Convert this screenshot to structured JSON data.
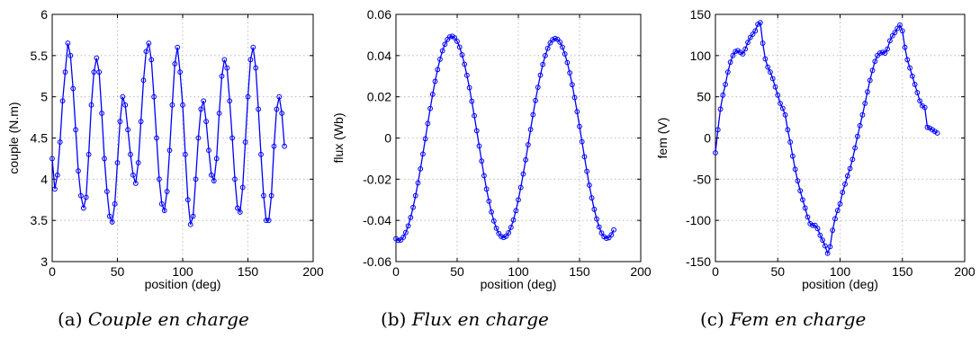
{
  "chart_data": [
    {
      "type": "line",
      "xlabel": "position (deg)",
      "ylabel": "couple (N.m)",
      "caption": {
        "tag": "(a)",
        "text": "Couple en charge"
      },
      "xlim": [
        0,
        200
      ],
      "ylim": [
        3,
        6
      ],
      "xticks": [
        0,
        50,
        100,
        150,
        200
      ],
      "yticks": [
        3,
        3.5,
        4,
        4.5,
        5,
        5.5,
        6
      ],
      "xtick_labels": [
        "0",
        "50",
        "100",
        "150",
        "200"
      ],
      "ytick_labels": [
        "3",
        "3.5",
        "4",
        "4.5",
        "5",
        "5.5",
        "6"
      ],
      "grid": true,
      "marker": "circle",
      "color": "#0000ff",
      "series": [
        {
          "x": [
            0,
            2,
            4,
            6,
            8,
            10,
            12,
            14,
            16,
            18,
            20,
            22,
            24,
            26,
            28,
            30,
            32,
            34,
            36,
            38,
            40,
            42,
            44,
            46,
            48,
            50,
            52,
            54,
            56,
            58,
            60,
            62,
            64,
            66,
            68,
            70,
            72,
            74,
            76,
            78,
            80,
            82,
            84,
            86,
            88,
            90,
            92,
            94,
            96,
            98,
            100,
            102,
            104,
            106,
            108,
            110,
            112,
            114,
            116,
            118,
            120,
            122,
            124,
            126,
            128,
            130,
            132,
            134,
            136,
            138,
            140,
            142,
            144,
            146,
            148,
            150,
            152,
            154,
            156,
            158,
            160,
            162,
            164,
            166,
            168,
            170,
            172,
            174,
            176,
            178
          ],
          "y": [
            4.25,
            3.88,
            4.05,
            4.45,
            4.95,
            5.3,
            5.65,
            5.5,
            5.1,
            4.6,
            4.1,
            3.8,
            3.65,
            3.78,
            4.3,
            4.9,
            5.3,
            5.47,
            5.3,
            4.8,
            4.25,
            3.85,
            3.55,
            3.48,
            3.7,
            4.2,
            4.7,
            5.0,
            4.9,
            4.6,
            4.3,
            4.05,
            3.95,
            4.2,
            4.7,
            5.2,
            5.55,
            5.65,
            5.45,
            5.0,
            4.5,
            4.0,
            3.7,
            3.62,
            3.85,
            4.35,
            4.9,
            5.4,
            5.6,
            5.3,
            4.9,
            4.3,
            3.75,
            3.45,
            3.55,
            4.0,
            4.5,
            4.85,
            4.95,
            4.7,
            4.35,
            4.05,
            3.98,
            4.25,
            4.8,
            5.25,
            5.45,
            5.35,
            4.95,
            4.5,
            4.0,
            3.65,
            3.6,
            3.9,
            4.45,
            5.0,
            5.45,
            5.6,
            5.35,
            4.85,
            4.3,
            3.8,
            3.5,
            3.5,
            3.8,
            4.4,
            4.85,
            5.0,
            4.8,
            4.4
          ]
        }
      ]
    },
    {
      "type": "line",
      "xlabel": "position (deg)",
      "ylabel": "flux (Wb)",
      "caption": {
        "tag": "(b)",
        "text": "Flux en charge"
      },
      "xlim": [
        0,
        200
      ],
      "ylim": [
        -0.06,
        0.06
      ],
      "xticks": [
        0,
        50,
        100,
        150,
        200
      ],
      "yticks": [
        -0.06,
        -0.04,
        -0.02,
        0,
        0.02,
        0.04,
        0.06
      ],
      "xtick_labels": [
        "0",
        "50",
        "100",
        "150",
        "200"
      ],
      "ytick_labels": [
        "-0.06",
        "-0.04",
        "-0.02",
        "0",
        "0.02",
        "0.04",
        "0.06"
      ],
      "grid": true,
      "marker": "circle",
      "color": "#0000ff",
      "series": [
        {
          "x": [
            0,
            2,
            4,
            6,
            8,
            10,
            12,
            14,
            16,
            18,
            20,
            22,
            24,
            26,
            28,
            30,
            32,
            34,
            36,
            38,
            40,
            42,
            44,
            46,
            48,
            50,
            52,
            54,
            56,
            58,
            60,
            62,
            64,
            66,
            68,
            70,
            72,
            74,
            76,
            78,
            80,
            82,
            84,
            86,
            88,
            90,
            92,
            94,
            96,
            98,
            100,
            102,
            104,
            106,
            108,
            110,
            112,
            114,
            116,
            118,
            120,
            122,
            124,
            126,
            128,
            130,
            132,
            134,
            136,
            138,
            140,
            142,
            144,
            146,
            148,
            150,
            152,
            154,
            156,
            158,
            160,
            162,
            164,
            166,
            168,
            170,
            172,
            174,
            176,
            178
          ],
          "y": [
            -0.0489,
            -0.0497,
            -0.0495,
            -0.0482,
            -0.0459,
            -0.0427,
            -0.0386,
            -0.0337,
            -0.028,
            -0.0218,
            -0.015,
            -0.0078,
            -0.0004,
            0.007,
            0.0143,
            0.0212,
            0.0275,
            0.0332,
            0.0382,
            0.0423,
            0.0455,
            0.0478,
            0.0491,
            0.0494,
            0.0486,
            0.0469,
            0.0441,
            0.0404,
            0.0358,
            0.0304,
            0.0244,
            0.0178,
            0.0108,
            0.0035,
            -0.0039,
            -0.0112,
            -0.0183,
            -0.0248,
            -0.0307,
            -0.0359,
            -0.0403,
            -0.0438,
            -0.0463,
            -0.0478,
            -0.0483,
            -0.0477,
            -0.046,
            -0.0434,
            -0.0398,
            -0.0353,
            -0.03,
            -0.024,
            -0.0175,
            -0.0106,
            -0.0033,
            0.0041,
            0.0113,
            0.0182,
            0.0246,
            0.0305,
            0.0357,
            0.04,
            0.0435,
            0.0461,
            0.0477,
            0.0483,
            0.0479,
            0.0465,
            0.0441,
            0.0408,
            0.0366,
            0.0316,
            0.0259,
            0.0196,
            0.0128,
            0.0056,
            -0.0018,
            -0.0091,
            -0.0162,
            -0.0229,
            -0.0291,
            -0.0346,
            -0.0393,
            -0.0432,
            -0.0461,
            -0.0479,
            -0.0487,
            -0.0484,
            -0.047,
            -0.0446
          ]
        }
      ]
    },
    {
      "type": "line",
      "xlabel": "position (deg)",
      "ylabel": "fem (V)",
      "caption": {
        "tag": "(c)",
        "text": "Fem en charge"
      },
      "xlim": [
        0,
        200
      ],
      "ylim": [
        -150,
        150
      ],
      "xticks": [
        0,
        50,
        100,
        150,
        200
      ],
      "yticks": [
        -150,
        -100,
        -50,
        0,
        50,
        100,
        150
      ],
      "xtick_labels": [
        "0",
        "50",
        "100",
        "150",
        "200"
      ],
      "ytick_labels": [
        "-150",
        "-100",
        "-50",
        "0",
        "50",
        "100",
        "150"
      ],
      "grid": true,
      "marker": "circle",
      "color": "#0000ff",
      "series": [
        {
          "x": [
            0,
            2,
            4,
            6,
            8,
            10,
            12,
            14,
            16,
            18,
            20,
            22,
            24,
            26,
            28,
            30,
            32,
            34,
            36,
            38,
            40,
            42,
            44,
            46,
            48,
            50,
            52,
            54,
            56,
            58,
            60,
            62,
            64,
            66,
            68,
            70,
            72,
            74,
            76,
            78,
            80,
            82,
            84,
            86,
            88,
            90,
            92,
            94,
            96,
            98,
            100,
            102,
            104,
            106,
            108,
            110,
            112,
            114,
            116,
            118,
            120,
            122,
            124,
            126,
            128,
            130,
            132,
            134,
            136,
            138,
            140,
            142,
            144,
            146,
            148,
            150,
            152,
            154,
            156,
            158,
            160,
            162,
            164,
            166,
            168,
            170,
            172,
            174,
            176,
            178
          ],
          "y": [
            -18,
            10,
            35,
            52,
            65,
            80,
            92,
            100,
            105,
            106,
            104,
            102,
            108,
            116,
            122,
            126,
            130,
            138,
            140,
            115,
            96,
            86,
            80,
            72,
            62,
            52,
            42,
            36,
            28,
            10,
            -5,
            -22,
            -38,
            -52,
            -64,
            -75,
            -85,
            -96,
            -104,
            -106,
            -106,
            -110,
            -118,
            -124,
            -131,
            -140,
            -132,
            -112,
            -98,
            -88,
            -80,
            -66,
            -56,
            -46,
            -37,
            -26,
            -12,
            2,
            15,
            28,
            42,
            56,
            70,
            82,
            93,
            100,
            103,
            104,
            103,
            108,
            118,
            124,
            128,
            133,
            137,
            130,
            110,
            95,
            85,
            75,
            65,
            55,
            45,
            39,
            37,
            13,
            12,
            10,
            8,
            6
          ]
        }
      ]
    }
  ]
}
